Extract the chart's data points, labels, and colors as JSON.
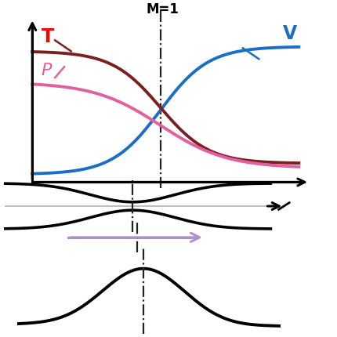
{
  "M1_label": "M=1",
  "v_label": "V",
  "T_label": "T",
  "P_label": "P",
  "curve_v_color": "#1a6fc4",
  "curve_T_color": "#7b2020",
  "curve_P_color": "#e060a0",
  "nozzle_color": "#000000",
  "arrow_color": "#b090c8",
  "dashed_color": "#222222",
  "bg_color": "#ffffff",
  "fig_width": 4.31,
  "fig_height": 4.31,
  "dpi": 100
}
